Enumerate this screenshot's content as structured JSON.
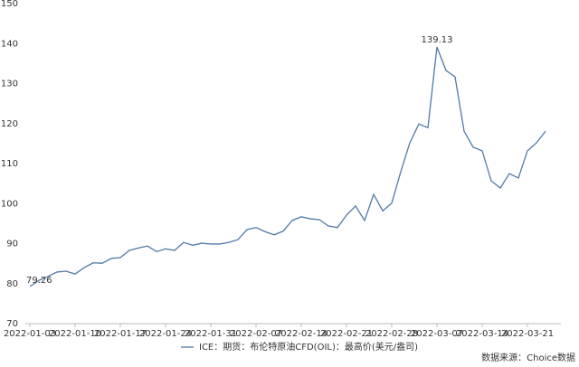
{
  "chart_data": {
    "type": "line",
    "categories": [
      "2022-01-03",
      null,
      null,
      null,
      null,
      "2022-01-10",
      null,
      null,
      null,
      null,
      "2022-01-17",
      null,
      null,
      null,
      null,
      "2022-01-24",
      null,
      null,
      null,
      null,
      "2022-01-31",
      null,
      null,
      null,
      null,
      "2022-02-07",
      null,
      null,
      null,
      null,
      "2022-02-14",
      null,
      null,
      null,
      null,
      "2022-02-21",
      null,
      null,
      null,
      null,
      "2022-02-28",
      null,
      null,
      null,
      null,
      "2022-03-07",
      null,
      null,
      null,
      null,
      "2022-03-14",
      null,
      null,
      null,
      null,
      "2022-03-21",
      null,
      null
    ],
    "series": [
      {
        "name": "ICE：期货：布伦特原油CFD(OIL)：最高价(美元/盎司)",
        "color": "#4f79a8",
        "values": [
          79.26,
          80.8,
          81.8,
          82.9,
          83.1,
          82.4,
          84.0,
          85.2,
          85.1,
          86.3,
          86.5,
          88.3,
          88.9,
          89.4,
          88.0,
          88.7,
          88.3,
          90.3,
          89.6,
          90.1,
          89.9,
          89.9,
          90.3,
          91.0,
          93.5,
          94.0,
          93.0,
          92.2,
          93.1,
          95.8,
          96.7,
          96.2,
          96.0,
          94.4,
          94.0,
          97.1,
          99.4,
          95.8,
          102.3,
          98.2,
          100.1,
          108.0,
          115.2,
          119.9,
          119.0,
          139.13,
          133.3,
          131.7,
          118.1,
          114.1,
          113.2,
          105.7,
          103.9,
          107.5,
          106.4,
          113.2,
          115.2,
          118.1
        ]
      }
    ],
    "ylim": [
      70,
      150
    ],
    "yticks": [
      70,
      80,
      90,
      100,
      110,
      120,
      130,
      140,
      150
    ],
    "source": "数据来源：Choice数据"
  }
}
